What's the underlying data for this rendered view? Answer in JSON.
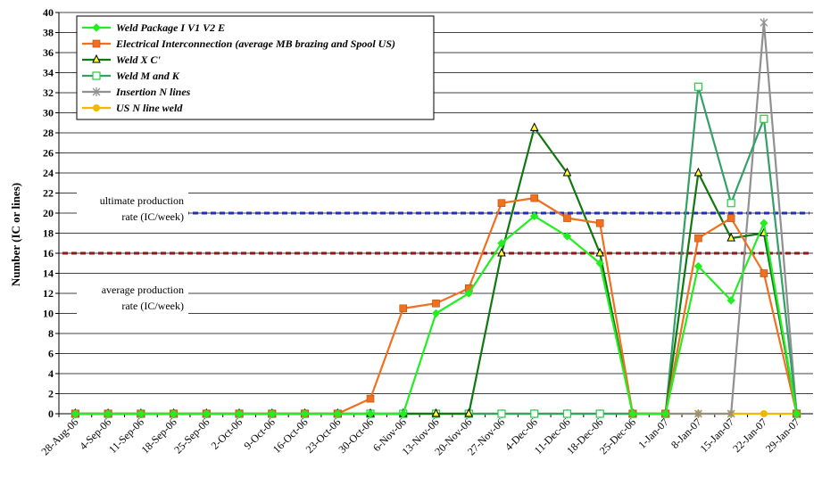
{
  "chart_data": {
    "type": "line",
    "ylabel": "Number (IC or lines)",
    "xlabel": "",
    "ylim": [
      0,
      40
    ],
    "yticks": [
      0,
      2,
      4,
      6,
      8,
      10,
      12,
      14,
      16,
      18,
      20,
      22,
      24,
      26,
      28,
      30,
      32,
      34,
      36,
      38,
      40
    ],
    "categories": [
      "28-Aug-06",
      "4-Sep-06",
      "11-Sep-06",
      "18-Sep-06",
      "25-Sep-06",
      "2-Oct-06",
      "9-Oct-06",
      "16-Oct-06",
      "23-Oct-06",
      "30-Oct-06",
      "6-Nov-06",
      "13-Nov-06",
      "20-Nov-06",
      "27-Nov-06",
      "4-Dec-06",
      "11-Dec-06",
      "18-Dec-06",
      "25-Dec-06",
      "1-Jan-07",
      "8-Jan-07",
      "15-Jan-07",
      "22-Jan-07",
      "29-Jan-07"
    ],
    "grid": true,
    "legend_position": "top-left",
    "series": [
      {
        "name": "Weld Package I V1 V2  E",
        "color": "#22ee22",
        "marker": "diamond",
        "values": [
          0,
          0,
          0,
          0,
          0,
          0,
          0,
          0,
          0,
          0,
          0,
          10,
          12,
          17,
          19.7,
          17.7,
          15,
          0,
          0,
          14.7,
          11.3,
          19,
          0
        ]
      },
      {
        "name": "Electrical Interconnection (average MB brazing and Spool US)",
        "color": "#f07020",
        "marker": "square",
        "values": [
          0,
          0,
          0,
          0,
          0,
          0,
          0,
          0,
          0,
          1.5,
          10.5,
          11,
          12.5,
          21,
          21.5,
          19.5,
          19,
          0,
          0,
          17.5,
          19.5,
          14,
          0
        ]
      },
      {
        "name": "Weld  X C'",
        "color": "#117711",
        "marker": "triangle",
        "values": [
          0,
          0,
          0,
          0,
          0,
          0,
          0,
          0,
          0,
          0,
          0,
          0,
          0,
          16,
          28.5,
          24,
          16,
          0,
          0,
          24,
          17.5,
          18,
          0
        ]
      },
      {
        "name": "Weld M and K",
        "color": "#33a066",
        "marker": "open-square",
        "values": [
          0,
          0,
          0,
          0,
          0,
          0,
          0,
          0,
          0,
          0,
          0,
          0,
          0,
          0,
          0,
          0,
          0,
          0,
          0,
          32.6,
          21,
          29.4,
          0
        ]
      },
      {
        "name": "Insertion N lines",
        "color": "#909090",
        "marker": "star",
        "values": [
          0,
          0,
          0,
          0,
          0,
          0,
          0,
          0,
          0,
          0,
          0,
          0,
          0,
          0,
          0,
          0,
          0,
          0,
          0,
          0,
          0,
          39,
          0
        ]
      },
      {
        "name": "US N line weld",
        "color": "#f0b800",
        "marker": "circle",
        "values": [
          0,
          0,
          0,
          0,
          0,
          0,
          0,
          0,
          0,
          0,
          0,
          0,
          0,
          0,
          0,
          0,
          0,
          0,
          0,
          0,
          0,
          0,
          0
        ]
      }
    ],
    "reference_lines": [
      {
        "value": 20,
        "color": "#1f2fbf",
        "label": "ultimate production rate (IC/week)"
      },
      {
        "value": 16,
        "color": "#8b1a1a",
        "label": "average production rate (IC/week)"
      }
    ]
  },
  "annotations": {
    "ultimate_line1": "ultimate production",
    "ultimate_line2": "rate (IC/week)",
    "average_line1": "average production",
    "average_line2": "rate (IC/week)"
  }
}
